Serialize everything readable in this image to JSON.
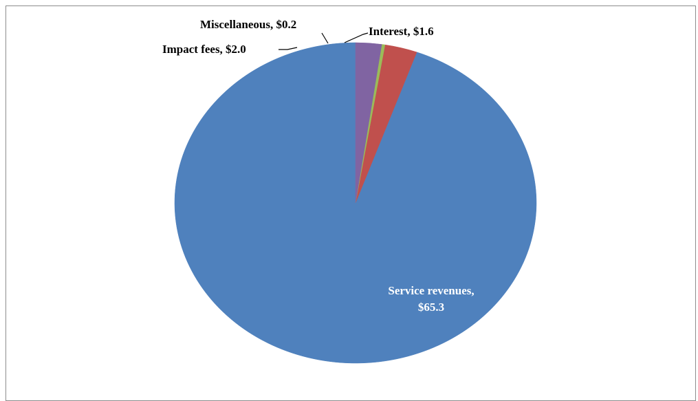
{
  "chart_data": {
    "type": "pie",
    "title": "",
    "series": [
      {
        "values": [
          {
            "label": "Service revenues",
            "value": 65.3,
            "text": "Service revenues,",
            "text2": "$65.3",
            "color": "#4f81bd"
          },
          {
            "label": "Impact fees",
            "value": 2.0,
            "text": "Impact fees,  $2.0",
            "color": "#c0504d"
          },
          {
            "label": "Miscellaneous",
            "value": 0.2,
            "text": "Miscellaneous,  $0.2",
            "color": "#9bbb59"
          },
          {
            "label": "Interest",
            "value": 1.6,
            "text": "Interest,  $1.6",
            "color": "#8064a2"
          }
        ]
      }
    ],
    "slice_order": "counterclockwise from top",
    "legend": "none",
    "label_color_inside": "#ffffff",
    "label_color_outside": "#000000"
  }
}
